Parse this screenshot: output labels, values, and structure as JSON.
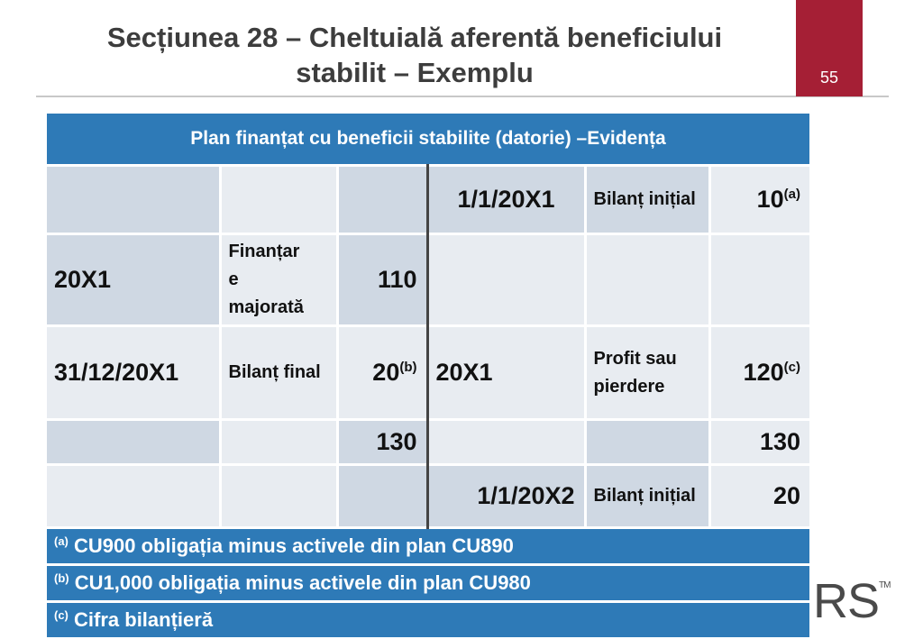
{
  "slide": {
    "title_line1": "Secțiunea 28 – Cheltuială aferentă beneficiului",
    "title_line2": "stabilit – Exemplu",
    "page_number": "55",
    "logo_text": "RS",
    "logo_tm": "TM"
  },
  "table": {
    "header": "Plan finanțat cu beneficii stabilite (datorie) –Evidența",
    "rows": [
      [
        "",
        "",
        "",
        "1/1/20X1",
        "Bilanț inițial",
        "10",
        "(a)"
      ],
      [
        "20X1",
        "Finanțare majorată",
        "110",
        "",
        "",
        ""
      ],
      [
        "31/12/20X1",
        "Bilanț final",
        "20",
        "(b)",
        "20X1",
        "Profit sau pierdere",
        "120",
        "(c)"
      ],
      [
        "",
        "",
        "130",
        "",
        "",
        "130"
      ],
      [
        "",
        "",
        "",
        "1/1/20X2",
        "Bilanț inițial",
        "20"
      ]
    ],
    "cells": {
      "r1_date": "1/1/20X1",
      "r1_label": "Bilanț inițial",
      "r1_value": "10",
      "r1_note": "(a)",
      "r2_year": "20X1",
      "r2_label_a": "Finanțar",
      "r2_label_b": "e",
      "r2_label_c": "majorată",
      "r2_value": "110",
      "r3_date": "31/12/20X1",
      "r3_label": "Bilanț final",
      "r3_value": "20",
      "r3_value_note": "(b)",
      "r3_year": "20X1",
      "r3_label_right": "Profit sau pierdere",
      "r3_value_right": "120",
      "r3_value_right_note": "(c)",
      "r4_total_left": "130",
      "r4_total_right": "130",
      "r5_date": "1/1/20X2",
      "r5_label": "Bilanț inițial",
      "r5_value": "20"
    },
    "notes": [
      {
        "mark": "(a)",
        "text": "CU900 obligația minus activele din plan CU890"
      },
      {
        "mark": "(b)",
        "text": "CU1,000 obligația minus activele din plan CU980"
      },
      {
        "mark": "(c)",
        "text": "Cifra bilanțieră"
      }
    ]
  },
  "colors": {
    "accent_red": "#a51f35",
    "header_blue": "#2e7ab7",
    "cell_mid": "#cfd8e3",
    "cell_light": "#e8ecf1"
  }
}
